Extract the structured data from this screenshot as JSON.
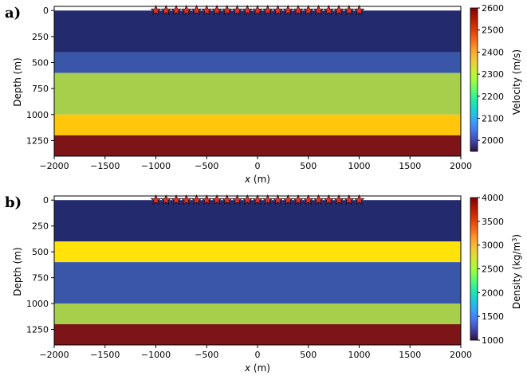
{
  "chart_data": [
    {
      "type": "heatmap",
      "panel_label": "a)",
      "xlabel_var": "x",
      "xlabel_unit": " (m)",
      "ylabel": "Depth (m)",
      "xlim": [
        -2000,
        2000
      ],
      "ylim": [
        1400,
        -40
      ],
      "xticks": [
        -2000,
        -1500,
        -1000,
        -500,
        0,
        500,
        1000,
        1500,
        2000
      ],
      "xtick_labels": [
        "−2000",
        "−1500",
        "−1000",
        "−500",
        "0",
        "500",
        "1000",
        "1500",
        "2000"
      ],
      "yticks": [
        0,
        250,
        500,
        750,
        1000,
        1250
      ],
      "ytick_labels": [
        "0",
        "250",
        "500",
        "750",
        "1000",
        "1250"
      ],
      "layers": [
        {
          "top": 0,
          "bottom": 400,
          "value": 1950,
          "color": "#232a6e"
        },
        {
          "top": 400,
          "bottom": 600,
          "value": 2050,
          "color": "#3a56a8"
        },
        {
          "top": 600,
          "bottom": 1000,
          "value": 2300,
          "color": "#a8cf4c"
        },
        {
          "top": 1000,
          "bottom": 1200,
          "value": 2400,
          "color": "#ffc60b"
        },
        {
          "top": 1200,
          "bottom": 1400,
          "value": 2600,
          "color": "#7d1417"
        }
      ],
      "sources": {
        "x_start": -1000,
        "x_end": 1000,
        "count": 21,
        "depth": 0,
        "color": "#e8302d"
      },
      "colorbar": {
        "label": "Velocity (m/s)",
        "min": 1950,
        "max": 2600,
        "ticks": [
          2000,
          2100,
          2200,
          2300,
          2400,
          2500,
          2600
        ],
        "tick_labels": [
          "2000",
          "2100",
          "2200",
          "2300",
          "2400",
          "2500",
          "2600"
        ]
      }
    },
    {
      "type": "heatmap",
      "panel_label": "b)",
      "xlabel_var": "x",
      "xlabel_unit": " (m)",
      "ylabel": "Depth (m)",
      "xlim": [
        -2000,
        2000
      ],
      "ylim": [
        1400,
        -40
      ],
      "xticks": [
        -2000,
        -1500,
        -1000,
        -500,
        0,
        500,
        1000,
        1500,
        2000
      ],
      "xtick_labels": [
        "−2000",
        "−1500",
        "−1000",
        "−500",
        "0",
        "500",
        "1000",
        "1500",
        "2000"
      ],
      "yticks": [
        0,
        250,
        500,
        750,
        1000,
        1250
      ],
      "ytick_labels": [
        "0",
        "250",
        "500",
        "750",
        "1000",
        "1250"
      ],
      "layers": [
        {
          "top": 0,
          "bottom": 400,
          "value": 1300,
          "color": "#232a6e"
        },
        {
          "top": 400,
          "bottom": 600,
          "value": 3000,
          "color": "#ffe30a"
        },
        {
          "top": 600,
          "bottom": 1000,
          "value": 1600,
          "color": "#3a56a8"
        },
        {
          "top": 1000,
          "bottom": 1200,
          "value": 2500,
          "color": "#a8cf4c"
        },
        {
          "top": 1200,
          "bottom": 1400,
          "value": 4000,
          "color": "#7d1417"
        }
      ],
      "sources": {
        "x_start": -1000,
        "x_end": 1000,
        "count": 21,
        "depth": 0,
        "color": "#e8302d"
      },
      "colorbar": {
        "label": "Density (kg/m",
        "label_sup": "3",
        "label_end": ")",
        "min": 1000,
        "max": 4000,
        "ticks": [
          1000,
          1500,
          2000,
          2500,
          3000,
          3500,
          4000
        ],
        "tick_labels": [
          "1000",
          "1500",
          "2000",
          "2500",
          "3000",
          "3500",
          "4000"
        ]
      }
    }
  ],
  "colormap": [
    "#30123b",
    "#4145ab",
    "#4675ed",
    "#39a2fc",
    "#1bcfd4",
    "#24eca6",
    "#61fc6c",
    "#a4fc3b",
    "#d1e834",
    "#f3c63a",
    "#fe9b2d",
    "#f36315",
    "#d93806",
    "#b11901",
    "#7a0402"
  ]
}
